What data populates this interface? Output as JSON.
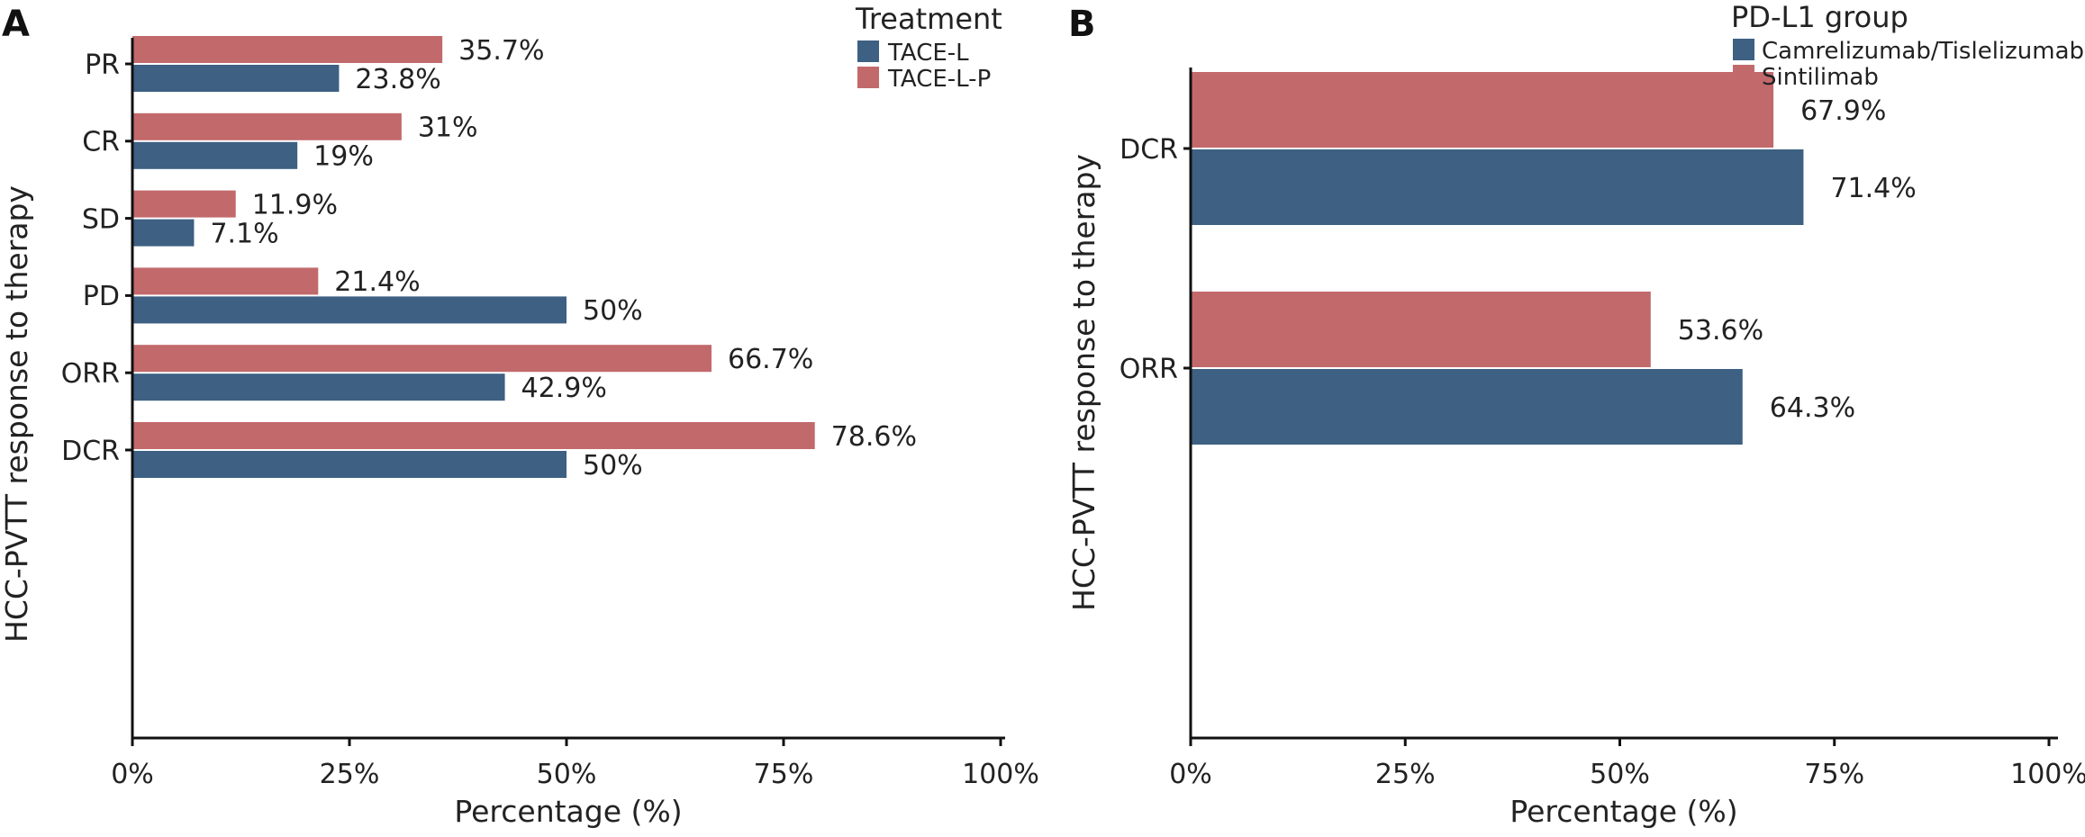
{
  "panels": [
    {
      "label": "A",
      "chart_data": {
        "type": "bar",
        "orientation": "horizontal",
        "categories": [
          "PR",
          "CR",
          "SD",
          "PD",
          "ORR",
          "DCR"
        ],
        "series": [
          {
            "name": "TACE-L",
            "color": "#3d6083",
            "values": [
              23.8,
              19,
              7.1,
              50,
              42.9,
              50
            ],
            "labels": [
              "23.8%",
              "19%",
              "7.1%",
              "50%",
              "42.9%",
              "50%"
            ]
          },
          {
            "name": "TACE-L-P",
            "color": "#c2696c",
            "values": [
              35.7,
              31,
              11.9,
              21.4,
              66.7,
              78.6
            ],
            "labels": [
              "35.7%",
              "31%",
              "11.9%",
              "21.4%",
              "66.7%",
              "78.6%"
            ]
          }
        ],
        "xlabel": "Percentage (%)",
        "ylabel": "HCC-PVTT response to therapy",
        "xlim": [
          0,
          100
        ],
        "x_ticks": [
          0,
          25,
          50,
          75,
          100
        ],
        "x_tick_labels": [
          "0%",
          "25%",
          "50%",
          "75%",
          "100%"
        ],
        "legend_title": "Treatment",
        "legend_position": "top-right",
        "grid": false
      }
    },
    {
      "label": "B",
      "chart_data": {
        "type": "bar",
        "orientation": "horizontal",
        "categories": [
          "DCR",
          "ORR"
        ],
        "series": [
          {
            "name": "Camrelizumab/Tislelizumab",
            "color": "#3d6083",
            "values": [
              71.4,
              64.3
            ],
            "labels": [
              "71.4%",
              "64.3%"
            ]
          },
          {
            "name": "Sintilimab",
            "color": "#c2696c",
            "values": [
              67.9,
              53.6
            ],
            "labels": [
              "67.9%",
              "53.6%"
            ]
          }
        ],
        "xlabel": "Percentage (%)",
        "ylabel": "HCC-PVTT response to therapy",
        "xlim": [
          0,
          100
        ],
        "x_ticks": [
          0,
          25,
          50,
          75,
          100
        ],
        "x_tick_labels": [
          "0%",
          "25%",
          "50%",
          "75%",
          "100%"
        ],
        "legend_title": "PD-L1 group",
        "legend_position": "top-right",
        "grid": false
      }
    }
  ]
}
